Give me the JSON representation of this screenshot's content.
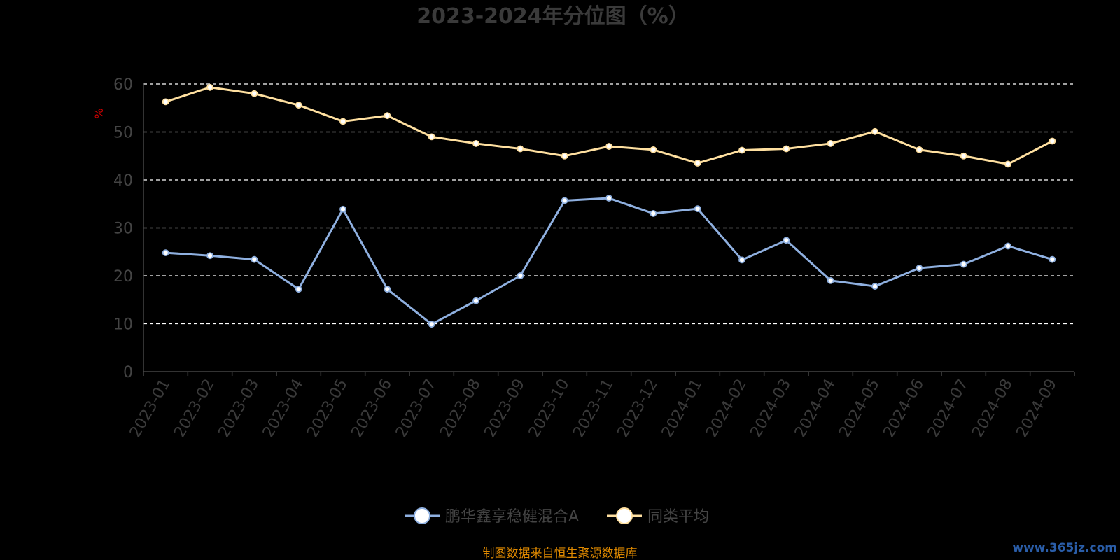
{
  "chart_data": {
    "type": "line",
    "title": "2023-2024年分位图（%）",
    "ylabel": "%",
    "xlabel": "",
    "ylim": [
      0,
      60
    ],
    "yticks": [
      0,
      10,
      20,
      30,
      40,
      50,
      60
    ],
    "grid": true,
    "legend_position": "bottom-center",
    "categories": [
      "2023-01",
      "2023-02",
      "2023-03",
      "2023-04",
      "2023-05",
      "2023-06",
      "2023-07",
      "2023-08",
      "2023-09",
      "2023-10",
      "2023-11",
      "2023-12",
      "2024-01",
      "2024-02",
      "2024-03",
      "2024-04",
      "2024-05",
      "2024-06",
      "2024-07",
      "2024-08",
      "2024-09"
    ],
    "series": [
      {
        "name": "鹏华鑫享稳健混合A",
        "color": "#8fb0e0",
        "values": [
          24.8,
          24.2,
          23.4,
          17.2,
          33.9,
          17.2,
          9.9,
          14.8,
          20.0,
          35.7,
          36.2,
          33.0,
          34.0,
          23.3,
          27.4,
          19.0,
          17.8,
          21.6,
          22.4,
          26.2,
          23.4
        ]
      },
      {
        "name": "同类平均",
        "color": "#ffe0a0",
        "values": [
          56.3,
          59.3,
          58.0,
          55.6,
          52.2,
          53.4,
          49.0,
          47.6,
          46.5,
          45.0,
          47.0,
          46.3,
          43.5,
          46.2,
          46.5,
          47.6,
          50.1,
          46.3,
          45.0,
          43.3,
          48.1
        ]
      }
    ]
  },
  "footer": {
    "source": "制图数据来自恒生聚源数据库",
    "watermark": "www.365jz.com"
  }
}
